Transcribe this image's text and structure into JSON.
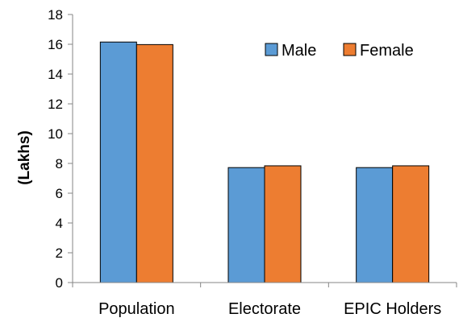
{
  "chart_data": {
    "type": "bar",
    "categories": [
      "Population",
      "Electorate",
      "EPIC Holders"
    ],
    "series": [
      {
        "name": "Male",
        "values": [
          16.15,
          7.72,
          7.72
        ],
        "color": "#5b9bd5"
      },
      {
        "name": "Female",
        "values": [
          15.98,
          7.84,
          7.84
        ],
        "color": "#ed7d31"
      }
    ],
    "title": "",
    "xlabel": "",
    "ylabel": "(Lakhs)",
    "ylim": [
      0,
      18
    ],
    "yticks": [
      0,
      2,
      4,
      6,
      8,
      10,
      12,
      14,
      16,
      18
    ],
    "grid": false,
    "legend_position": "top-right"
  }
}
